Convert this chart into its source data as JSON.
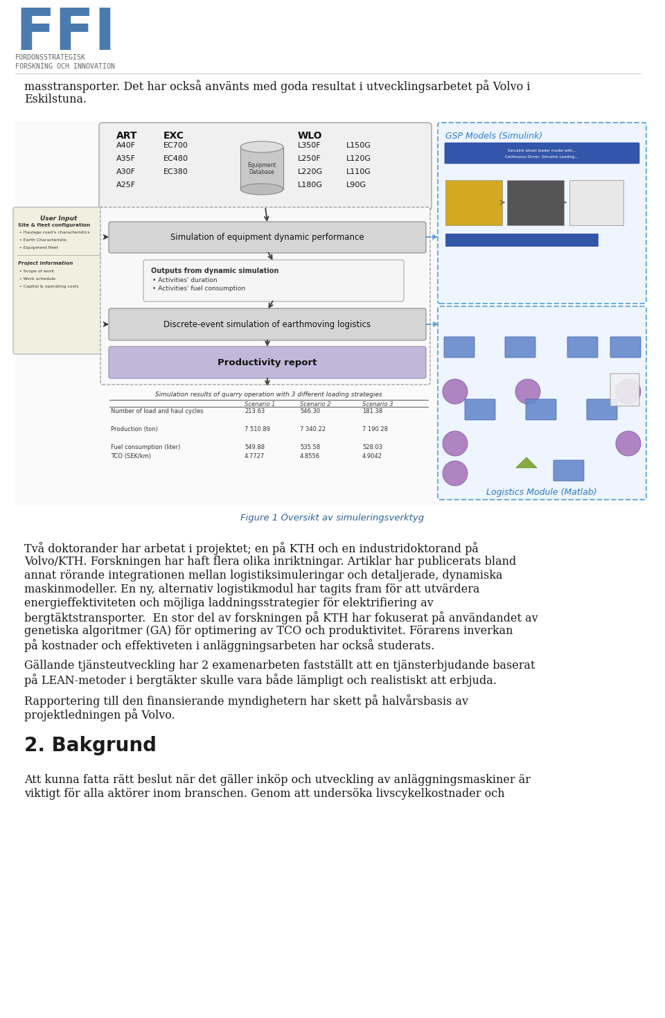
{
  "page_bg": "#ffffff",
  "logo_color": "#4a7aaf",
  "subtitle1": "FORDONSSTRATEGISK",
  "subtitle2": "FORSKNING OCH INNOVATION",
  "subtitle_color": "#666666",
  "body_text_color": "#1a1a1a",
  "figure_caption": "Figure 1 Översikt av simuleringsverktyg",
  "figure_caption_color": "#2a6099",
  "para0_lines": [
    "masstransporter. Det har också använts med goda resultat i utvecklingsarbetet på Volvo i",
    "Eskilstuna."
  ],
  "para2_lines": [
    "Två doktorander har arbetat i projektet; en på KTH och en industridoktorand på",
    "Volvo/KTH. Forskningen har haft flera olika inriktningar. Artiklar har publicerats bland",
    "annat rörande integrationen mellan logistiksimuleringar och detaljerade, dynamiska",
    "maskinmodeller. En ny, alternativ logistikmodul har tagits fram för att utvärdera",
    "energieffektiviteten och möjliga laddningsstrategier för elektrifiering av",
    "bergtäktstransporter.  En stor del av forskningen på KTH har fokuserat på användandet av",
    "genetiska algoritmer (GA) för optimering av TCO och produktivitet. Förarens inverkan",
    "på kostnader och effektiveten i anläggningsarbeten har också studerats."
  ],
  "para3_lines": [
    "Gällande tjänsteutveckling har 2 examenarbeten fastställt att en tjänsterbjudande baserat",
    "på LEAN-metoder i bergtäkter skulle vara både lämpligt och realistiskt att erbjuda."
  ],
  "para4_lines": [
    "Rapportering till den finansierande myndighetern har skett på halvårsbasis av",
    "projektledningen på Volvo."
  ],
  "section_heading": "2. Bakgrund",
  "section_para_lines": [
    "Att kunna fatta rätt beslut när det gäller inköp och utveckling av anläggningsmaskiner är",
    "viktigt för alla aktörer inom branschen. Genom att undersöka livscykelkostnader och"
  ],
  "font_size_body": 11.5,
  "font_size_heading": 20,
  "art_items": [
    "A40F",
    "A35F",
    "A30F",
    "A25F"
  ],
  "exc_items": [
    "EC700",
    "EC480",
    "EC380"
  ],
  "wlo_left": [
    "L350F",
    "L250F",
    "L220G",
    "L180G"
  ],
  "wlo_right": [
    "L150G",
    "L120G",
    "L110G",
    "L90G"
  ],
  "tbl_title": "Simulation results of quarry operation with 3 different loading strategies",
  "tbl_headers": [
    "",
    "Scenario 1",
    "Scenario 2",
    "Scenario 3"
  ],
  "tbl_rows": [
    [
      "Number of load and haul cycles",
      "213.63",
      "546.30",
      "181.38"
    ],
    [
      "",
      "",
      "",
      ""
    ],
    [
      "Production (ton)",
      "7 510.89",
      "7 340.22",
      "7 190.28"
    ],
    [
      "",
      "",
      "",
      ""
    ],
    [
      "Fuel consumption (liter)",
      "549.88",
      "535.58",
      "528.03"
    ],
    [
      "TCO (SEK/km)",
      "4.7727",
      "4.8556",
      "4.9042"
    ]
  ],
  "gsp_label": "GSP Models (Simulink)",
  "lm_label": "Logistics Module (Matlab)",
  "ui_label": "User Input",
  "b1_label": "Simulation of equipment dynamic performance",
  "b2_label": "Outputs from dynamic simulation",
  "b2_sub": [
    "Activities' duration",
    "Activities' fuel consumption"
  ],
  "b3_label": "Discrete-event simulation of earthmoving logistics",
  "b4_label": "Productivity report",
  "eq_label1": "Equipment",
  "eq_label2": "Database",
  "ui_s1": "Site & fleet configuration",
  "ui_s1_items": [
    "Haulage road's characteristics",
    "Earth Characteristic",
    "Equipment fleet"
  ],
  "ui_s2": "Project information",
  "ui_s2_items": [
    "Scope of work",
    "Work schedule",
    "Capital & operating costs"
  ]
}
